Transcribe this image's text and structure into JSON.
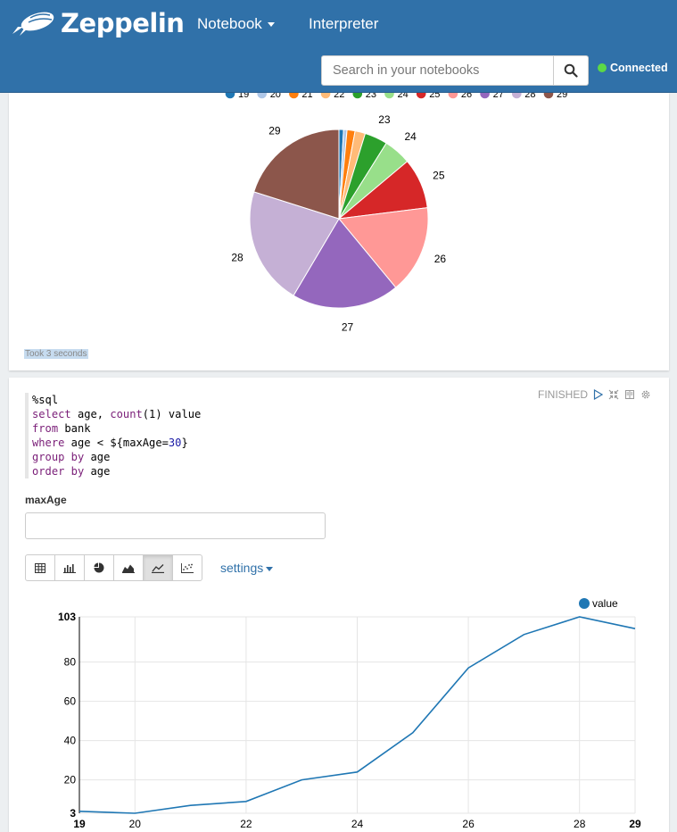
{
  "header": {
    "brand": "Zeppelin",
    "nav": {
      "notebook": "Notebook",
      "interpreter": "Interpreter"
    },
    "search": {
      "placeholder": "Search in your notebooks"
    },
    "status": "Connected",
    "colors": {
      "bar": "#3071a9",
      "status": "#5cd846"
    }
  },
  "paragraph1": {
    "took": "Took 3 seconds",
    "chart_data": {
      "type": "pie",
      "legend": [
        "19",
        "20",
        "21",
        "22",
        "23",
        "24",
        "25",
        "26",
        "27",
        "28",
        "29"
      ],
      "slices": [
        {
          "label": "19",
          "value": 4,
          "color": "#1f77b4"
        },
        {
          "label": "20",
          "value": 3,
          "color": "#aec7e8"
        },
        {
          "label": "21",
          "value": 7,
          "color": "#ff7f0e"
        },
        {
          "label": "22",
          "value": 9,
          "color": "#ffbb78"
        },
        {
          "label": "23",
          "value": 20,
          "color": "#2ca02c"
        },
        {
          "label": "24",
          "value": 24,
          "color": "#98df8a"
        },
        {
          "label": "25",
          "value": 44,
          "color": "#d62728"
        },
        {
          "label": "26",
          "value": 77,
          "color": "#ff9896"
        },
        {
          "label": "27",
          "value": 94,
          "color": "#9467bd"
        },
        {
          "label": "28",
          "value": 103,
          "color": "#c5b0d5"
        },
        {
          "label": "29",
          "value": 97,
          "color": "#8c564b"
        }
      ],
      "visible_labels": [
        "23",
        "24",
        "25",
        "26",
        "27",
        "28",
        "29"
      ],
      "legend_placement": "top"
    }
  },
  "paragraph2": {
    "status": "FINISHED",
    "code": {
      "magic": "%sql",
      "l2_kw": "select",
      "l2_rest": " age, ",
      "l2_fn": "count",
      "l2_args": "(1) value",
      "l3_kw": "from",
      "l3_rest": " bank",
      "l4_kw": "where",
      "l4_rest": " age < ${maxAge=",
      "l4_num": "30",
      "l4_end": "}",
      "l5_kw": "group by",
      "l5_rest": " age",
      "l6_kw": "order by",
      "l6_rest": " age"
    },
    "form": {
      "label": "maxAge",
      "value": ""
    },
    "settings_label": "settings",
    "chart_data": {
      "type": "line",
      "series": [
        {
          "name": "value",
          "color": "#1f77b4",
          "values": [
            4,
            3,
            7,
            9,
            20,
            24,
            44,
            77,
            94,
            103,
            97
          ]
        }
      ],
      "x": [
        19,
        20,
        21,
        22,
        23,
        24,
        25,
        26,
        27,
        28,
        29
      ],
      "x_ticks": [
        "19",
        "20",
        "22",
        "24",
        "26",
        "28",
        "29"
      ],
      "y_ticks": [
        "3",
        "20",
        "40",
        "60",
        "80",
        "103"
      ],
      "ylim": [
        3,
        103
      ],
      "xlim": [
        19,
        29
      ],
      "grid": true,
      "legend_placement": "top-right"
    }
  }
}
